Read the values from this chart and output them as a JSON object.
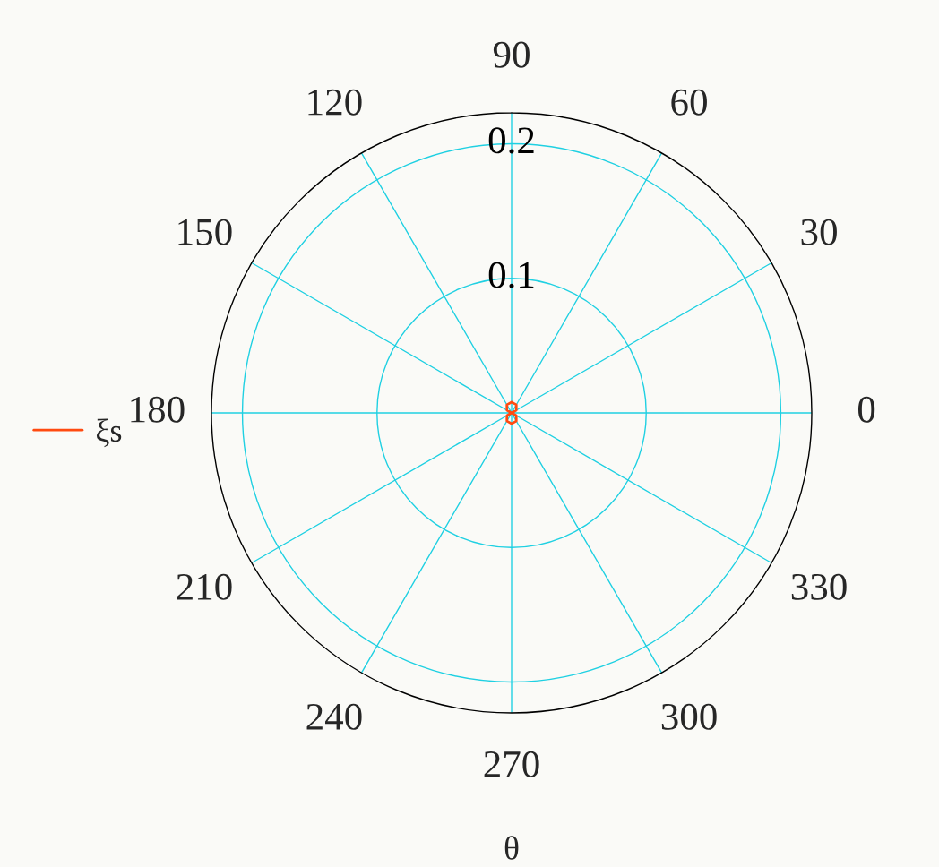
{
  "chart_data": {
    "type": "radar",
    "ylim": [
      0,
      0.223
    ],
    "yticks": [
      0.1,
      0.2
    ],
    "xlabel": "θ",
    "categories": [
      "90",
      "60",
      "30",
      "0",
      "330",
      "300",
      "270",
      "240",
      "210",
      "180",
      "150",
      "120"
    ],
    "series": [
      {
        "name": "ξs",
        "color": "#ff4a10",
        "values": [
          0.008,
          0.007,
          0.004,
          0,
          0.004,
          0.007,
          0.008,
          0.007,
          0.004,
          0,
          0.004,
          0.007
        ]
      }
    ],
    "grid": true,
    "legend": "left",
    "marker": "none",
    "line_style": "solid"
  }
}
